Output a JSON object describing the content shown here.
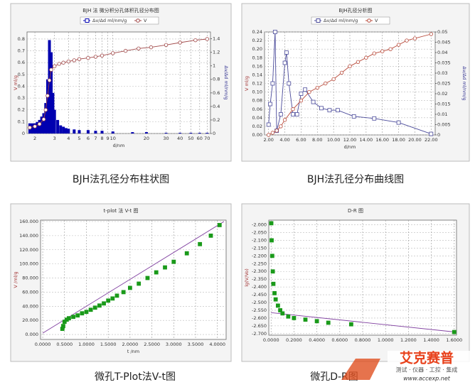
{
  "chart_data": [
    {
      "type": "combo",
      "title": "BJH 法 微分积分孔体积孔径分布图",
      "caption": "BJH法孔径分布柱状图",
      "xlabel": "d/nm",
      "ylabel": "V ml/g",
      "y2label": "Δv/Δd ml/nm/g",
      "xlog": true,
      "xlim": [
        1.7,
        75
      ],
      "xticks": [
        2,
        3,
        4,
        5,
        6,
        7,
        8,
        9,
        10,
        20,
        30,
        40,
        50,
        60,
        70
      ],
      "ylim": [
        0,
        0.86
      ],
      "yticks": [
        0,
        0.1,
        0.2,
        0.3,
        0.4,
        0.5,
        0.6,
        0.7,
        0.8
      ],
      "y2lim": [
        0,
        1.5
      ],
      "y2ticks": [
        0,
        0.2,
        0.4,
        0.6,
        0.8,
        1,
        1.2,
        1.4
      ],
      "grid": true,
      "legend": "top",
      "series": [
        {
          "name": "Δv/Δd ml/nm/g",
          "color": "#0000b0",
          "kind": "bar",
          "axis": "y2",
          "marker": "square",
          "x": [
            1.8,
            1.9,
            2.0,
            2.1,
            2.2,
            2.3,
            2.4,
            2.5,
            2.6,
            2.7,
            2.8,
            2.9,
            3.0,
            3.2,
            3.4,
            3.6,
            3.8,
            4.0,
            4.5,
            5,
            6,
            7,
            8,
            10,
            15,
            20,
            30,
            40,
            50,
            60,
            70
          ],
          "values": [
            0.15,
            0.15,
            0.15,
            0.17,
            0.2,
            0.25,
            0.3,
            0.45,
            0.8,
            1.38,
            1.2,
            0.6,
            0.35,
            0.2,
            0.12,
            0.1,
            0.08,
            0.07,
            0.06,
            0.05,
            0.05,
            0.04,
            0.04,
            0.03,
            0.02,
            0.02,
            0.01,
            0.01,
            0.01,
            0.01,
            0.01
          ]
        },
        {
          "name": "V",
          "color": "#a04848",
          "kind": "line",
          "marker": "circle",
          "x": [
            1.8,
            2.0,
            2.2,
            2.4,
            2.5,
            2.6,
            2.7,
            2.8,
            3.0,
            3.3,
            3.6,
            4,
            4.5,
            5,
            6,
            7,
            8,
            10,
            13,
            17,
            22,
            30,
            40,
            55,
            70
          ],
          "values": [
            0.05,
            0.06,
            0.08,
            0.12,
            0.2,
            0.32,
            0.45,
            0.54,
            0.57,
            0.59,
            0.6,
            0.61,
            0.62,
            0.63,
            0.64,
            0.65,
            0.66,
            0.68,
            0.7,
            0.72,
            0.73,
            0.75,
            0.77,
            0.79,
            0.8
          ]
        }
      ]
    },
    {
      "type": "combo",
      "title": "BJH孔径分析图",
      "caption": "BJH法孔径分布曲线图",
      "xlabel": "d/nm",
      "ylabel": "V ml/g",
      "y2label": "Δv/Δd ml/nm/g",
      "xlim": [
        1.5,
        22.5
      ],
      "xticks": [
        {
          "value": 2,
          "label": "2.00"
        },
        {
          "value": 4,
          "label": "4.00"
        },
        {
          "value": 6,
          "label": "6.00"
        },
        {
          "value": 8,
          "label": "8.00"
        },
        {
          "value": 10,
          "label": "10.00"
        },
        {
          "value": 12,
          "label": "12.00"
        },
        {
          "value": 14,
          "label": "14.00"
        },
        {
          "value": 16,
          "label": "16.00"
        },
        {
          "value": 18,
          "label": "18.00"
        },
        {
          "value": 20,
          "label": "20.00"
        },
        {
          "value": 22,
          "label": "22.00"
        }
      ],
      "ylim": [
        0,
        0.24
      ],
      "yticks": [
        {
          "value": 0,
          "label": "0.00"
        },
        0.02,
        0.04,
        0.06,
        0.08,
        {
          "value": 0.1,
          "label": "0.10"
        },
        0.12,
        0.14,
        0.16,
        0.18,
        {
          "value": 0.2,
          "label": "0.20"
        },
        0.22,
        0.24
      ],
      "y2lim": [
        0,
        0.05
      ],
      "y2ticks": [
        0,
        0.005,
        0.01,
        0.015,
        0.02,
        0.025,
        0.03,
        0.035,
        0.04,
        0.045,
        0.05
      ],
      "grid": true,
      "legend": "top",
      "series": [
        {
          "name": "Δv/Δd ml/nm/g",
          "color": "#4a4a9a",
          "kind": "line",
          "axis": "y2",
          "marker": "square",
          "x": [
            2.0,
            2.2,
            2.5,
            2.8,
            3.0,
            3.5,
            4.0,
            4.2,
            4.5,
            5.0,
            5.5,
            6.0,
            6.5,
            7.5,
            8.5,
            9.5,
            10.5,
            12.5,
            15,
            18,
            22
          ],
          "values": [
            0.005,
            0.015,
            0.025,
            0.05,
            0.002,
            0.01,
            0.035,
            0.04,
            0.025,
            0.01,
            0.01,
            0.02,
            0.022,
            0.016,
            0.013,
            0.012,
            0.012,
            0.009,
            0.008,
            0.006,
            0.0005
          ]
        },
        {
          "name": "V",
          "color": "#b84a3a",
          "kind": "line",
          "marker": "circle",
          "x": [
            2.0,
            2.5,
            3,
            3.5,
            4,
            5,
            6,
            7,
            8,
            9,
            10,
            11,
            12,
            13,
            14,
            15,
            16,
            17,
            18,
            19,
            20,
            22
          ],
          "values": [
            0.0,
            0.005,
            0.01,
            0.02,
            0.035,
            0.06,
            0.08,
            0.1,
            0.11,
            0.12,
            0.13,
            0.145,
            0.16,
            0.17,
            0.18,
            0.19,
            0.195,
            0.2,
            0.21,
            0.22,
            0.225,
            0.235
          ]
        }
      ]
    },
    {
      "type": "scatter",
      "title": "t-plot 法 V-t 图",
      "caption": "微孔T-Plot法V-t图",
      "xlabel": "t /nm",
      "ylabel": "V /ml/g",
      "xlim": [
        -0.05,
        4.2
      ],
      "xticks": [
        {
          "value": 0,
          "label": "0.0000"
        },
        {
          "value": 0.5,
          "label": "0.5000"
        },
        {
          "value": 1,
          "label": "1.0000"
        },
        {
          "value": 1.5,
          "label": "1.5000"
        },
        {
          "value": 2,
          "label": "2.0000"
        },
        {
          "value": 2.5,
          "label": "2.5000"
        },
        {
          "value": 3,
          "label": "3.0000"
        },
        {
          "value": 3.5,
          "label": "3.5000"
        },
        {
          "value": 4,
          "label": "4.0000"
        }
      ],
      "ylim": [
        -7,
        162
      ],
      "yticks": [
        {
          "value": 0,
          "label": "0.000"
        },
        {
          "value": 20,
          "label": "20.000"
        },
        {
          "value": 40,
          "label": "40.000"
        },
        {
          "value": 60,
          "label": "60.000"
        },
        {
          "value": 80,
          "label": "80.000"
        },
        {
          "value": 100,
          "label": "100.000"
        },
        {
          "value": 120,
          "label": "120.000"
        },
        {
          "value": 140,
          "label": "140.000"
        },
        {
          "value": 160,
          "label": "160.000"
        }
      ],
      "grid": true,
      "series": [
        {
          "color": "#8040a0",
          "kind": "line",
          "marker": "none",
          "x": [
            0,
            4.15
          ],
          "values": [
            2,
            160
          ]
        },
        {
          "color": "#1a9a1a",
          "kind": "points",
          "marker": "square",
          "x": [
            0.45,
            0.47,
            0.5,
            0.55,
            0.6,
            0.7,
            0.8,
            0.9,
            1.0,
            1.1,
            1.2,
            1.3,
            1.4,
            1.5,
            1.6,
            1.7,
            1.85,
            2.0,
            2.2,
            2.4,
            2.6,
            2.8,
            3.0,
            3.3,
            3.6,
            3.85,
            4.05
          ],
          "values": [
            8,
            12,
            18,
            21,
            23,
            25,
            27,
            30,
            32,
            35,
            38,
            41,
            44,
            48,
            51,
            55,
            60,
            66,
            72,
            80,
            88,
            95,
            103,
            115,
            128,
            140,
            155
          ]
        }
      ]
    },
    {
      "type": "scatter",
      "title": "D-R 图",
      "caption": "微孔D-R图",
      "ylabel": "lg(V/Vo)",
      "xlim": [
        -0.02,
        1.62
      ],
      "xticks": [
        {
          "value": 0,
          "label": "0.0000"
        },
        {
          "value": 0.2,
          "label": "0.2000"
        },
        {
          "value": 0.4,
          "label": "0.4000"
        },
        {
          "value": 0.6,
          "label": "0.6000"
        },
        {
          "value": 0.8,
          "label": "0.8000"
        },
        {
          "value": 1,
          "label": "1.0000"
        },
        {
          "value": 1.2,
          "label": "1.2000"
        },
        {
          "value": 1.4,
          "label": "1.4000"
        },
        {
          "value": 1.6,
          "label": "1.6000"
        }
      ],
      "ylim": [
        -2.71,
        -1.97
      ],
      "yticks": [
        {
          "value": -2,
          "label": "-2.000"
        },
        {
          "value": -2.05,
          "label": "-2.050"
        },
        {
          "value": -2.1,
          "label": "-2.100"
        },
        {
          "value": -2.15,
          "label": "-2.150"
        },
        {
          "value": -2.2,
          "label": "-2.200"
        },
        {
          "value": -2.25,
          "label": "-2.250"
        },
        {
          "value": -2.3,
          "label": "-2.300"
        },
        {
          "value": -2.35,
          "label": "-2.350"
        },
        {
          "value": -2.4,
          "label": "-2.400"
        },
        {
          "value": -2.45,
          "label": "-2.450"
        },
        {
          "value": -2.5,
          "label": "-2.500"
        },
        {
          "value": -2.55,
          "label": "-2.550"
        },
        {
          "value": -2.6,
          "label": "-2.600"
        },
        {
          "value": -2.65,
          "label": "-2.650"
        },
        {
          "value": -2.7,
          "label": "-2.700"
        }
      ],
      "grid": true,
      "series": [
        {
          "color": "#8040a0",
          "kind": "line",
          "marker": "none",
          "x": [
            0,
            1.61
          ],
          "values": [
            -2.565,
            -2.69
          ]
        },
        {
          "color": "#1a9a1a",
          "kind": "points",
          "marker": "square",
          "x": [
            0.002,
            0.005,
            0.01,
            0.015,
            0.02,
            0.03,
            0.04,
            0.06,
            0.08,
            0.1,
            0.15,
            0.2,
            0.3,
            0.4,
            0.5,
            0.7,
            1.6
          ],
          "values": [
            -1.99,
            -2.1,
            -2.2,
            -2.3,
            -2.38,
            -2.44,
            -2.48,
            -2.52,
            -2.55,
            -2.57,
            -2.59,
            -2.6,
            -2.61,
            -2.62,
            -2.63,
            -2.64,
            -2.69
          ]
        }
      ]
    }
  ],
  "watermark": {
    "brand": "艾克赛普",
    "slogan": "测试 · 仪器 · 工控 · 集成",
    "url": "www.accexp.net"
  }
}
